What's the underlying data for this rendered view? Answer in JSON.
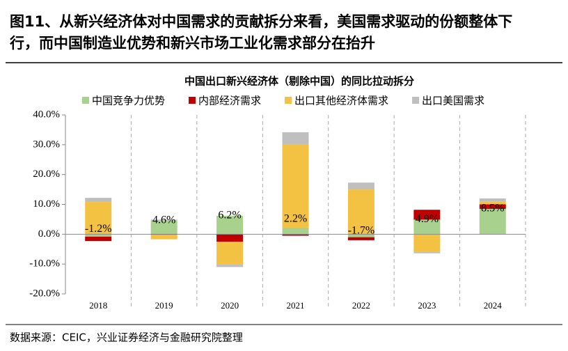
{
  "heading": [
    "图11、从新兴经济体对中国需求的贡献拆分来看，美国需求驱动的份额整体下",
    "行，而中国制造业优势和新兴市场工业化需求部分在抬升"
  ],
  "source": "数据来源：CEIC，兴业证券经济与金融研究院整理",
  "chart_data": {
    "type": "stacked_bar",
    "title": "中国出口新兴经济体（剔除中国）的同比拉动拆分",
    "categories": [
      "2018",
      "2019",
      "2020",
      "2021",
      "2022",
      "2023",
      "2024"
    ],
    "series": [
      {
        "name": "中国竞争力优势",
        "color": "#a9d18e",
        "values": [
          -0.8,
          4.6,
          6.2,
          2.2,
          -1.0,
          4.9,
          8.5
        ]
      },
      {
        "name": "内部经济需求",
        "color": "#c00000",
        "values": [
          -1.5,
          -0.2,
          -2.5,
          -0.5,
          -1.0,
          3.3,
          1.5
        ]
      },
      {
        "name": "出口其他经济体需求",
        "color": "#f4c242",
        "values": [
          10.8,
          -1.5,
          -7.5,
          28.0,
          15.0,
          -5.8,
          1.0
        ]
      },
      {
        "name": "出口美国需求",
        "color": "#bfbfbf",
        "values": [
          1.4,
          0.3,
          -1.0,
          4.0,
          2.3,
          -0.6,
          1.0
        ]
      }
    ],
    "net": {
      "values": [
        -1.2,
        4.6,
        6.2,
        2.2,
        -1.7,
        4.9,
        8.5
      ],
      "value_labels": [
        "-1.2%",
        "4.6%",
        "6.2%",
        "2.2%",
        "-1.7%",
        "4.9%",
        "8.5%"
      ]
    },
    "ylim": [
      -20,
      40
    ],
    "yticks": [
      {
        "value": 40,
        "label": "40.0%"
      },
      {
        "value": 30,
        "label": "30.0%"
      },
      {
        "value": 20,
        "label": "20.0%"
      },
      {
        "value": 10,
        "label": "10.0%"
      },
      {
        "value": 0,
        "label": "0.0%"
      },
      {
        "value": -10,
        "label": "-10.0%"
      },
      {
        "value": -20,
        "label": "-20.0%"
      }
    ],
    "legend": "top"
  }
}
